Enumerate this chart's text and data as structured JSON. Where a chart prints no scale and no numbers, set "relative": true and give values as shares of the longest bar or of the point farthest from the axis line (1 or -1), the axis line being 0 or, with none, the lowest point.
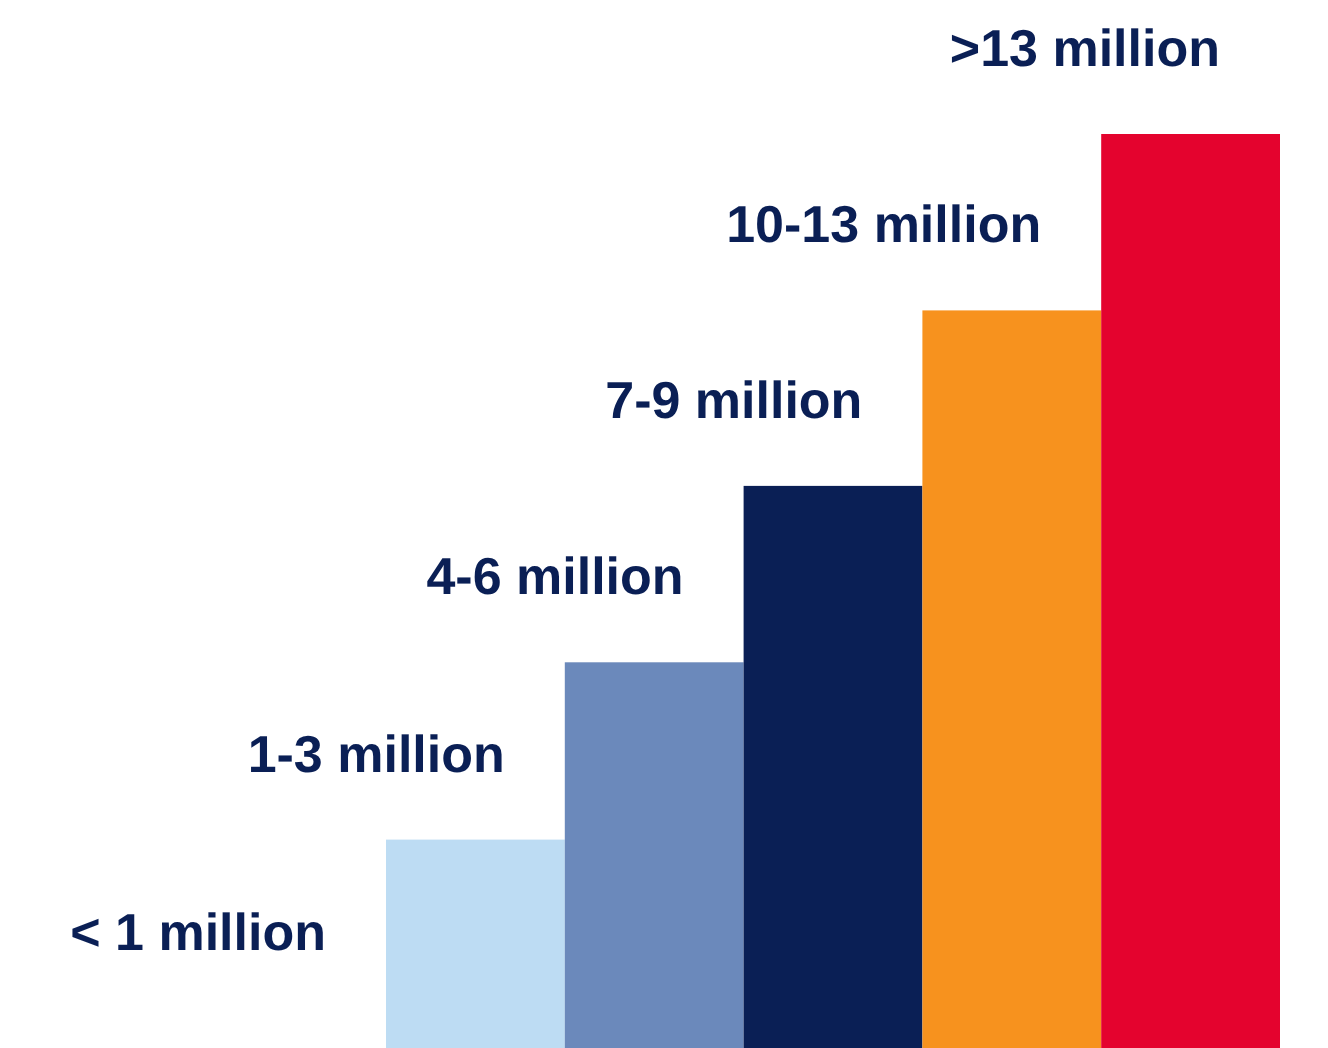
{
  "chart_data": {
    "type": "bar",
    "relative": true,
    "categories": [
      null,
      null,
      null,
      null,
      null
    ],
    "values": [
      0.228,
      0.422,
      0.615,
      0.807,
      1
    ],
    "colors": [
      "#bddcf3",
      "#6b89bb",
      "#0a1f55",
      "#f7921e",
      "#e4032e"
    ],
    "annotations": [
      "< 1 million",
      "1-3 million",
      "4-6 million",
      "7-9 million",
      "10-13 million",
      ">13 million"
    ]
  }
}
